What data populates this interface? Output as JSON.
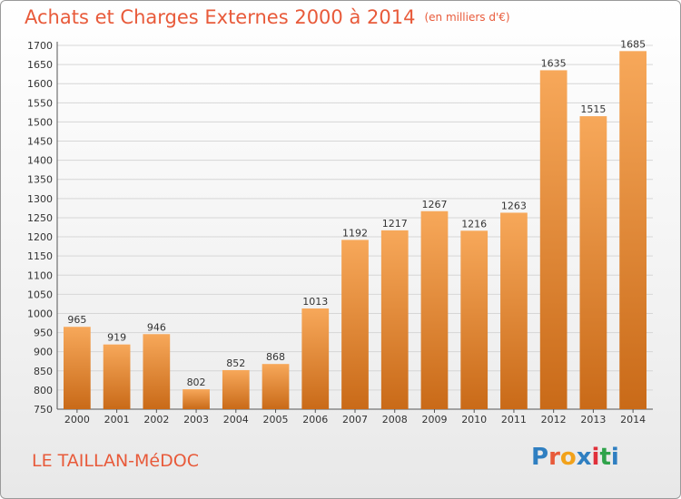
{
  "header": {
    "title": "Achats et Charges Externes 2000 à 2014",
    "subtitle": "(en milliers d'€)"
  },
  "footer": {
    "commune": "LE TAILLAN-MéDOC",
    "logo_text": "Proxiti",
    "logo_colors": [
      "#2f7fc1",
      "#e85a3a",
      "#f2a21b",
      "#2f7fc1",
      "#e0303a",
      "#2fa34a",
      "#2f7fc1"
    ]
  },
  "colors": {
    "accent": "#e85a3a",
    "bar_top": "#f7a85a",
    "bar_bottom": "#c96a18",
    "grid": "#d6d6d6"
  },
  "chart_data": {
    "type": "bar",
    "title": "Achats et Charges Externes 2000 à 2014",
    "subtitle": "(en milliers d'€)",
    "xlabel": "",
    "ylabel": "",
    "categories": [
      "2000",
      "2001",
      "2002",
      "2003",
      "2004",
      "2005",
      "2006",
      "2007",
      "2008",
      "2009",
      "2010",
      "2011",
      "2012",
      "2013",
      "2014"
    ],
    "values": [
      965,
      919,
      946,
      802,
      852,
      868,
      1013,
      1192,
      1217,
      1267,
      1216,
      1263,
      1635,
      1515,
      1685
    ],
    "ylim": [
      750,
      1700
    ],
    "ytick_step": 50,
    "grid": true,
    "data_labels": true
  }
}
